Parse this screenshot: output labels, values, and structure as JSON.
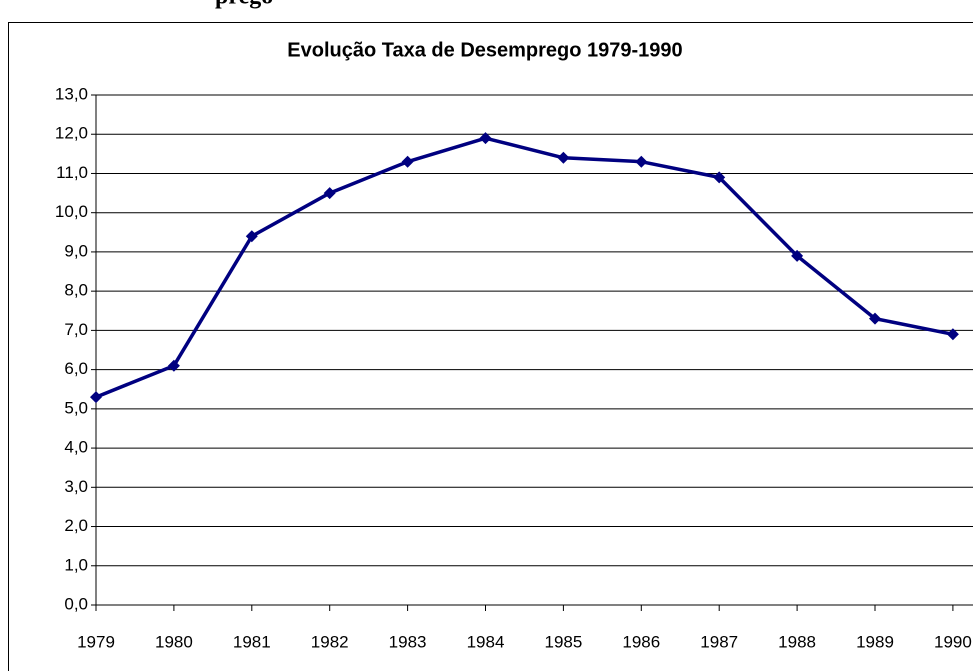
{
  "page_heading": "prego",
  "chart_data": {
    "type": "line",
    "title": "Evolução Taxa de Desemprego 1979-1990",
    "categories": [
      "1979",
      "1980",
      "1981",
      "1982",
      "1983",
      "1984",
      "1985",
      "1986",
      "1987",
      "1988",
      "1989",
      "1990"
    ],
    "series": [
      {
        "name": "Taxa de Desemprego",
        "color": "#000080",
        "values": [
          5.3,
          6.1,
          9.4,
          10.5,
          11.3,
          11.9,
          11.4,
          11.3,
          10.9,
          8.9,
          7.3,
          6.9
        ]
      }
    ],
    "ylim": [
      0,
      13
    ],
    "yticks": [
      {
        "value": 0,
        "label": "0,0"
      },
      {
        "value": 1,
        "label": "1,0"
      },
      {
        "value": 2,
        "label": "2,0"
      },
      {
        "value": 3,
        "label": "3,0"
      },
      {
        "value": 4,
        "label": "4,0"
      },
      {
        "value": 5,
        "label": "5,0"
      },
      {
        "value": 6,
        "label": "6,0"
      },
      {
        "value": 7,
        "label": "7,0"
      },
      {
        "value": 8,
        "label": "8,0"
      },
      {
        "value": 9,
        "label": "9,0"
      },
      {
        "value": 10,
        "label": "10,0"
      },
      {
        "value": 11,
        "label": "11,0"
      },
      {
        "value": 12,
        "label": "12,0"
      },
      {
        "value": 13,
        "label": "13,0"
      }
    ],
    "grid": true
  }
}
